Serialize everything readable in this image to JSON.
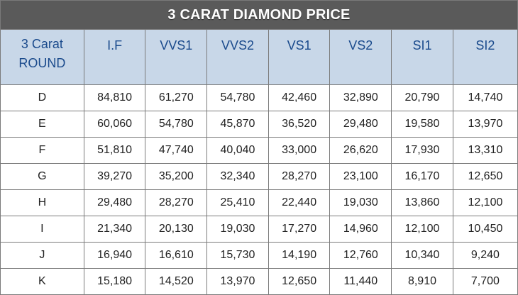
{
  "title": "3 CARAT DIAMOND PRICE",
  "corner_header": [
    "3 Carat",
    "ROUND"
  ],
  "clarity_grades": [
    "I.F",
    "VVS1",
    "VVS2",
    "VS1",
    "VS2",
    "SI1",
    "SI2"
  ],
  "rows": [
    {
      "color": "D",
      "prices": [
        "84,810",
        "61,270",
        "54,780",
        "42,460",
        "32,890",
        "20,790",
        "14,740"
      ]
    },
    {
      "color": "E",
      "prices": [
        "60,060",
        "54,780",
        "45,870",
        "36,520",
        "29,480",
        "19,580",
        "13,970"
      ]
    },
    {
      "color": "F",
      "prices": [
        "51,810",
        "47,740",
        "40,040",
        "33,000",
        "26,620",
        "17,930",
        "13,310"
      ]
    },
    {
      "color": "G",
      "prices": [
        "39,270",
        "35,200",
        "32,340",
        "28,270",
        "23,100",
        "16,170",
        "12,650"
      ]
    },
    {
      "color": "H",
      "prices": [
        "29,480",
        "28,270",
        "25,410",
        "22,440",
        "19,030",
        "13,860",
        "12,100"
      ]
    },
    {
      "color": "I",
      "prices": [
        "21,340",
        "20,130",
        "19,030",
        "17,270",
        "14,960",
        "12,100",
        "10,450"
      ]
    },
    {
      "color": "J",
      "prices": [
        "16,940",
        "16,610",
        "15,730",
        "14,190",
        "12,760",
        "10,340",
        "9,240"
      ]
    },
    {
      "color": "K",
      "prices": [
        "15,180",
        "14,520",
        "13,970",
        "12,650",
        "11,440",
        "8,910",
        "7,700"
      ]
    }
  ],
  "colors": {
    "title_bg": "#5a5a5a",
    "header_bg": "#c8d7e8",
    "header_text": "#1a4a8c",
    "border": "#7a7a7a"
  }
}
